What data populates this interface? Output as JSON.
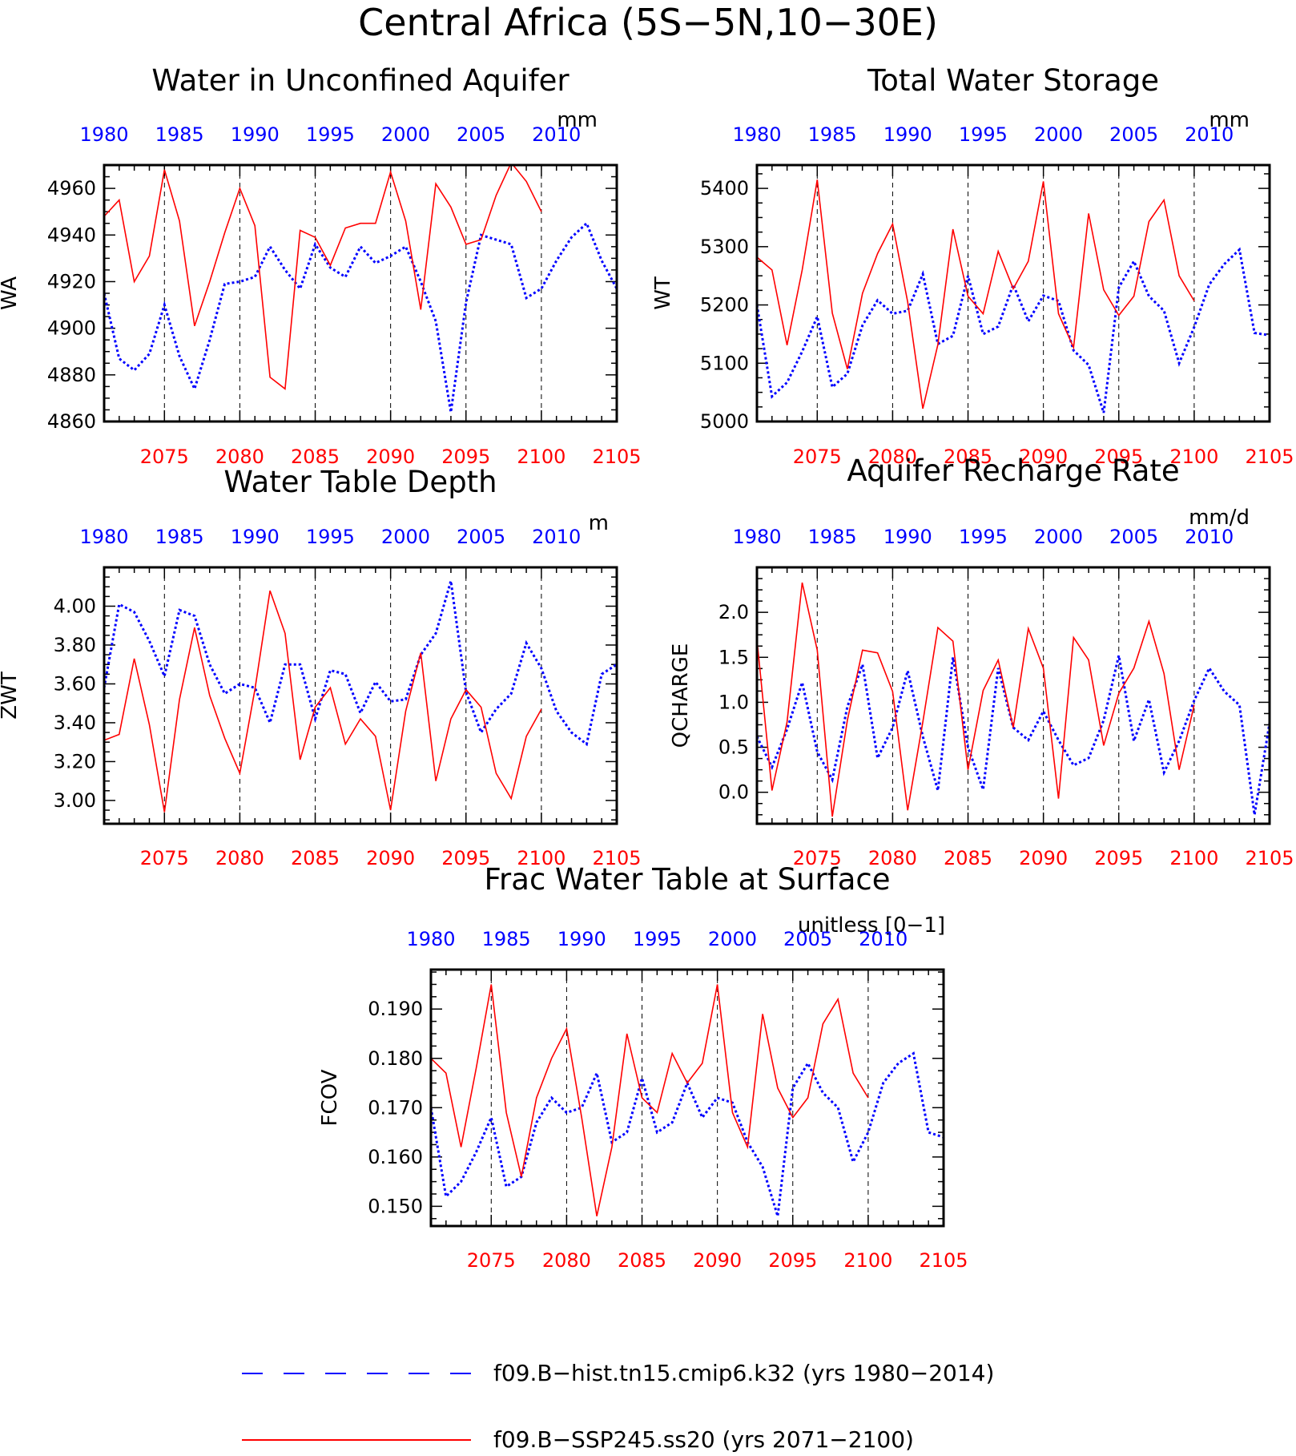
{
  "figure_title": "Central Africa (5S−5N,10−30E)",
  "legend": {
    "hist_label": "f09.B−hist.tn15.cmip6.k32 (yrs 1980−2014)",
    "ssp_label": "f09.B−SSP245.ss20 (yrs 2071−2100)"
  },
  "colors": {
    "hist": "#0000ff",
    "ssp": "#ff0000",
    "axes": "#000000"
  },
  "chart_data": [
    {
      "id": "wa",
      "type": "line",
      "title": "Water in Unconfined Aquifer",
      "ylabel": "WA",
      "units": "mm",
      "ylim": [
        4860,
        4970
      ],
      "yticks": [
        4860,
        4880,
        4900,
        4920,
        4940,
        4960
      ],
      "ytick_labels": [
        "4860",
        "4880",
        "4900",
        "4920",
        "4940",
        "4960"
      ],
      "xlim": [
        2071,
        2105
      ],
      "xticks_bottom": [
        "2075",
        "2080",
        "2085",
        "2090",
        "2095",
        "2100",
        "2105"
      ],
      "xticks_top": [
        "1980",
        "1985",
        "1990",
        "1995",
        "2000",
        "2005",
        "2010"
      ],
      "series": [
        {
          "name": "f09.B−hist.tn15.cmip6.k32 (yrs 1980−2014)",
          "style": "dotted",
          "color": "#0000ff",
          "x": [
            2071,
            2072,
            2073,
            2074,
            2075,
            2076,
            2077,
            2078,
            2079,
            2080,
            2081,
            2082,
            2083,
            2084,
            2085,
            2086,
            2087,
            2088,
            2089,
            2090,
            2091,
            2092,
            2093,
            2094,
            2095,
            2096,
            2097,
            2098,
            2099,
            2100,
            2101,
            2102,
            2103,
            2104,
            2105
          ],
          "values": [
            4915,
            4887,
            4882,
            4889,
            4910,
            4888,
            4874,
            4895,
            4919,
            4920,
            4922,
            4935,
            4925,
            4917,
            4936,
            4926,
            4922,
            4935,
            4928,
            4931,
            4935,
            4920,
            4903,
            4864,
            4911,
            4940,
            4938,
            4936,
            4913,
            4917,
            4929,
            4939,
            4945,
            4929,
            4917
          ]
        },
        {
          "name": "f09.B−SSP245.ss20 (yrs 2071−2100)",
          "style": "solid",
          "color": "#ff0000",
          "x": [
            2071,
            2072,
            2073,
            2074,
            2075,
            2076,
            2077,
            2078,
            2079,
            2080,
            2081,
            2082,
            2083,
            2084,
            2085,
            2086,
            2087,
            2088,
            2089,
            2090,
            2091,
            2092,
            2093,
            2094,
            2095,
            2096,
            2097,
            2098,
            2099,
            2100
          ],
          "values": [
            4948,
            4955,
            4920,
            4931,
            4968,
            4946,
            4901,
            4920,
            4941,
            4960,
            4944,
            4879,
            4874,
            4942,
            4939,
            4927,
            4943,
            4945,
            4945,
            4967,
            4946,
            4908,
            4962,
            4952,
            4936,
            4938,
            4957,
            4971,
            4963,
            4950
          ]
        }
      ]
    },
    {
      "id": "wt",
      "type": "line",
      "title": "Total Water Storage",
      "ylabel": "WT",
      "units": "mm",
      "ylim": [
        5000,
        5440
      ],
      "yticks": [
        5000,
        5100,
        5200,
        5300,
        5400
      ],
      "ytick_labels": [
        "5000",
        "5100",
        "5200",
        "5300",
        "5400"
      ],
      "xlim": [
        2071,
        2105
      ],
      "xticks_bottom": [
        "2075",
        "2080",
        "2085",
        "2090",
        "2095",
        "2100",
        "2105"
      ],
      "xticks_top": [
        "1980",
        "1985",
        "1990",
        "1995",
        "2000",
        "2005",
        "2010"
      ],
      "series": [
        {
          "name": "f09.B−hist.tn15.cmip6.k32 (yrs 1980−2014)",
          "style": "dotted",
          "color": "#0000ff",
          "x": [
            2071,
            2072,
            2073,
            2074,
            2075,
            2076,
            2077,
            2078,
            2079,
            2080,
            2081,
            2082,
            2083,
            2084,
            2085,
            2086,
            2087,
            2088,
            2089,
            2090,
            2091,
            2092,
            2093,
            2094,
            2095,
            2096,
            2097,
            2098,
            2099,
            2100,
            2101,
            2102,
            2103,
            2104,
            2105
          ],
          "values": [
            5200,
            5043,
            5067,
            5120,
            5180,
            5059,
            5082,
            5165,
            5208,
            5185,
            5190,
            5253,
            5133,
            5147,
            5250,
            5150,
            5163,
            5235,
            5172,
            5216,
            5207,
            5122,
            5097,
            5015,
            5230,
            5275,
            5215,
            5190,
            5100,
            5162,
            5235,
            5270,
            5295,
            5152,
            5148
          ]
        },
        {
          "name": "f09.B−SSP245.ss20 (yrs 2071−2100)",
          "style": "solid",
          "color": "#ff0000",
          "x": [
            2071,
            2072,
            2073,
            2074,
            2075,
            2076,
            2077,
            2078,
            2079,
            2080,
            2081,
            2082,
            2083,
            2084,
            2085,
            2086,
            2087,
            2088,
            2089,
            2090,
            2091,
            2092,
            2093,
            2094,
            2095,
            2096,
            2097,
            2098,
            2099,
            2100
          ],
          "values": [
            5282,
            5260,
            5131,
            5260,
            5415,
            5186,
            5090,
            5220,
            5288,
            5339,
            5205,
            5022,
            5132,
            5330,
            5215,
            5185,
            5292,
            5228,
            5275,
            5412,
            5185,
            5127,
            5357,
            5226,
            5182,
            5215,
            5343,
            5380,
            5250,
            5207
          ]
        }
      ]
    },
    {
      "id": "zwt",
      "type": "line",
      "title": "Water Table Depth",
      "ylabel": "ZWT",
      "units": "m",
      "ylim": [
        2.88,
        4.2
      ],
      "yticks": [
        3.0,
        3.2,
        3.4,
        3.6,
        3.8,
        4.0
      ],
      "ytick_labels": [
        "3.00",
        "3.20",
        "3.40",
        "3.60",
        "3.80",
        "4.00"
      ],
      "xlim": [
        2071,
        2105
      ],
      "xticks_bottom": [
        "2075",
        "2080",
        "2085",
        "2090",
        "2095",
        "2100",
        "2105"
      ],
      "xticks_top": [
        "1980",
        "1985",
        "1990",
        "1995",
        "2000",
        "2005",
        "2010"
      ],
      "series": [
        {
          "name": "f09.B−hist.tn15.cmip6.k32 (yrs 1980−2014)",
          "style": "dotted",
          "color": "#0000ff",
          "x": [
            2071,
            2072,
            2073,
            2074,
            2075,
            2076,
            2077,
            2078,
            2079,
            2080,
            2081,
            2082,
            2083,
            2084,
            2085,
            2086,
            2087,
            2088,
            2089,
            2090,
            2091,
            2092,
            2093,
            2094,
            2095,
            2096,
            2097,
            2098,
            2099,
            2100,
            2101,
            2102,
            2103,
            2104,
            2105
          ],
          "values": [
            3.58,
            4.01,
            3.97,
            3.82,
            3.64,
            3.98,
            3.95,
            3.7,
            3.55,
            3.6,
            3.58,
            3.4,
            3.7,
            3.7,
            3.42,
            3.67,
            3.65,
            3.45,
            3.61,
            3.51,
            3.52,
            3.75,
            3.86,
            4.13,
            3.56,
            3.35,
            3.47,
            3.55,
            3.81,
            3.68,
            3.46,
            3.35,
            3.29,
            3.65,
            3.7
          ]
        },
        {
          "name": "f09.B−SSP245.ss20 (yrs 2071−2100)",
          "style": "solid",
          "color": "#ff0000",
          "x": [
            2071,
            2072,
            2073,
            2074,
            2075,
            2076,
            2077,
            2078,
            2079,
            2080,
            2081,
            2082,
            2083,
            2084,
            2085,
            2086,
            2087,
            2088,
            2089,
            2090,
            2091,
            2092,
            2093,
            2094,
            2095,
            2096,
            2097,
            2098,
            2099,
            2100
          ],
          "values": [
            3.31,
            3.34,
            3.73,
            3.39,
            2.94,
            3.52,
            3.89,
            3.54,
            3.32,
            3.14,
            3.57,
            4.08,
            3.86,
            3.21,
            3.48,
            3.58,
            3.29,
            3.42,
            3.33,
            2.95,
            3.46,
            3.76,
            3.1,
            3.42,
            3.57,
            3.48,
            3.14,
            3.01,
            3.33,
            3.47
          ]
        }
      ]
    },
    {
      "id": "qcharge",
      "type": "line",
      "title": "Aquifer Recharge Rate",
      "ylabel": "QCHARGE",
      "units": "mm/d",
      "ylim": [
        -0.35,
        2.5
      ],
      "yticks": [
        0.0,
        0.5,
        1.0,
        1.5,
        2.0
      ],
      "ytick_labels": [
        "0.0",
        "0.5",
        "1.0",
        "1.5",
        "2.0"
      ],
      "xlim": [
        2071,
        2105
      ],
      "xticks_bottom": [
        "2075",
        "2080",
        "2085",
        "2090",
        "2095",
        "2100",
        "2105"
      ],
      "xticks_top": [
        "1980",
        "1985",
        "1990",
        "1995",
        "2000",
        "2005",
        "2010"
      ],
      "series": [
        {
          "name": "f09.B−hist.tn15.cmip6.k32 (yrs 1980−2014)",
          "style": "dotted",
          "color": "#0000ff",
          "x": [
            2071,
            2072,
            2073,
            2074,
            2075,
            2076,
            2077,
            2078,
            2079,
            2080,
            2081,
            2082,
            2083,
            2084,
            2085,
            2086,
            2087,
            2088,
            2089,
            2090,
            2091,
            2092,
            2093,
            2094,
            2095,
            2096,
            2097,
            2098,
            2099,
            2100,
            2101,
            2102,
            2103,
            2104,
            2105
          ],
          "values": [
            0.62,
            0.28,
            0.7,
            1.22,
            0.45,
            0.14,
            0.95,
            1.42,
            0.38,
            0.72,
            1.35,
            0.62,
            0.02,
            1.5,
            0.5,
            0.03,
            1.38,
            0.72,
            0.58,
            0.9,
            0.58,
            0.3,
            0.38,
            0.8,
            1.52,
            0.57,
            1.03,
            0.22,
            0.57,
            1.02,
            1.38,
            1.12,
            0.97,
            -0.25,
            0.77
          ]
        },
        {
          "name": "f09.B−SSP245.ss20 (yrs 2071−2100)",
          "style": "solid",
          "color": "#ff0000",
          "x": [
            2071,
            2072,
            2073,
            2074,
            2075,
            2076,
            2077,
            2078,
            2079,
            2080,
            2081,
            2082,
            2083,
            2084,
            2085,
            2086,
            2087,
            2088,
            2089,
            2090,
            2091,
            2092,
            2093,
            2094,
            2095,
            2096,
            2097,
            2098,
            2099,
            2100
          ],
          "values": [
            1.7,
            0.02,
            0.78,
            2.33,
            1.58,
            -0.27,
            0.8,
            1.58,
            1.55,
            1.12,
            -0.2,
            0.78,
            1.83,
            1.68,
            0.25,
            1.13,
            1.47,
            0.72,
            1.82,
            1.38,
            -0.07,
            1.72,
            1.47,
            0.52,
            1.1,
            1.38,
            1.9,
            1.32,
            0.25,
            0.97
          ]
        }
      ]
    },
    {
      "id": "fcov",
      "type": "line",
      "title": "Frac Water Table at Surface",
      "ylabel": "FCOV",
      "units": "unitless [0−1]",
      "ylim": [
        0.146,
        0.198
      ],
      "yticks": [
        0.15,
        0.16,
        0.17,
        0.18,
        0.19
      ],
      "ytick_labels": [
        "0.150",
        "0.160",
        "0.170",
        "0.180",
        "0.190"
      ],
      "xlim": [
        2071,
        2105
      ],
      "xticks_bottom": [
        "2075",
        "2080",
        "2085",
        "2090",
        "2095",
        "2100",
        "2105"
      ],
      "xticks_top": [
        "1980",
        "1985",
        "1990",
        "1995",
        "2000",
        "2005",
        "2010"
      ],
      "series": [
        {
          "name": "f09.B−hist.tn15.cmip6.k32 (yrs 1980−2014)",
          "style": "dotted",
          "color": "#0000ff",
          "x": [
            2071,
            2072,
            2073,
            2074,
            2075,
            2076,
            2077,
            2078,
            2079,
            2080,
            2081,
            2082,
            2083,
            2084,
            2085,
            2086,
            2087,
            2088,
            2089,
            2090,
            2091,
            2092,
            2093,
            2094,
            2095,
            2096,
            2097,
            2098,
            2099,
            2100,
            2101,
            2102,
            2103,
            2104,
            2105
          ],
          "values": [
            0.17,
            0.152,
            0.155,
            0.161,
            0.168,
            0.154,
            0.156,
            0.167,
            0.172,
            0.169,
            0.17,
            0.177,
            0.163,
            0.165,
            0.176,
            0.165,
            0.167,
            0.175,
            0.168,
            0.172,
            0.171,
            0.163,
            0.158,
            0.148,
            0.174,
            0.179,
            0.173,
            0.17,
            0.159,
            0.165,
            0.175,
            0.179,
            0.181,
            0.165,
            0.164
          ]
        },
        {
          "name": "f09.B−SSP245.ss20 (yrs 2071−2100)",
          "style": "solid",
          "color": "#ff0000",
          "x": [
            2071,
            2072,
            2073,
            2074,
            2075,
            2076,
            2077,
            2078,
            2079,
            2080,
            2081,
            2082,
            2083,
            2084,
            2085,
            2086,
            2087,
            2088,
            2089,
            2090,
            2091,
            2092,
            2093,
            2094,
            2095,
            2096,
            2097,
            2098,
            2099,
            2100
          ],
          "values": [
            0.18,
            0.177,
            0.162,
            0.178,
            0.195,
            0.169,
            0.156,
            0.172,
            0.18,
            0.186,
            0.168,
            0.148,
            0.162,
            0.185,
            0.172,
            0.169,
            0.181,
            0.175,
            0.179,
            0.195,
            0.169,
            0.162,
            0.189,
            0.174,
            0.168,
            0.172,
            0.187,
            0.192,
            0.177,
            0.172
          ]
        }
      ]
    }
  ]
}
